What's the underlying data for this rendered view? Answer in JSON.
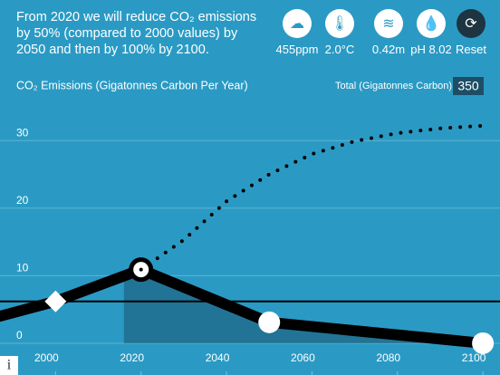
{
  "header": {
    "message": "From 2020 we will reduce CO₂ emissions by 50% (compared to 2000 values) by 2050 and then by 100% by 2100.",
    "indicators": [
      "455ppm",
      "2.0°C",
      "0.42m",
      "pH 8.02"
    ],
    "reset": "Reset"
  },
  "total": {
    "label": "Total (Gigatonnes Carbon)",
    "value": "350"
  },
  "info": "i",
  "chart_data": {
    "type": "line",
    "title": "CO₂ Emissions (Gigatonnes Carbon Per Year)",
    "series": [
      {
        "name": "Emissions",
        "color": "#000000",
        "x": [
          1987,
          2000,
          2020,
          2050,
          2100
        ],
        "values": [
          4.0,
          6.2,
          10.9,
          3.1,
          0
        ]
      },
      {
        "name": "Total",
        "color": "#000000",
        "style": "dotted",
        "x": [
          2020,
          2030,
          2040,
          2050,
          2060,
          2070,
          2080,
          2090,
          2100
        ],
        "values": [
          10.9,
          15.3,
          21,
          25,
          28,
          29.9,
          31.1,
          31.8,
          32.2
        ]
      }
    ],
    "area_start": 2016,
    "xlim": [
      1987,
      2104
    ],
    "xticks": [
      2000,
      2020,
      2040,
      2060,
      2080,
      2100
    ],
    "ylim": [
      -4.7,
      37.4
    ],
    "yticks": [
      0,
      10,
      20,
      30
    ],
    "grid": true
  }
}
